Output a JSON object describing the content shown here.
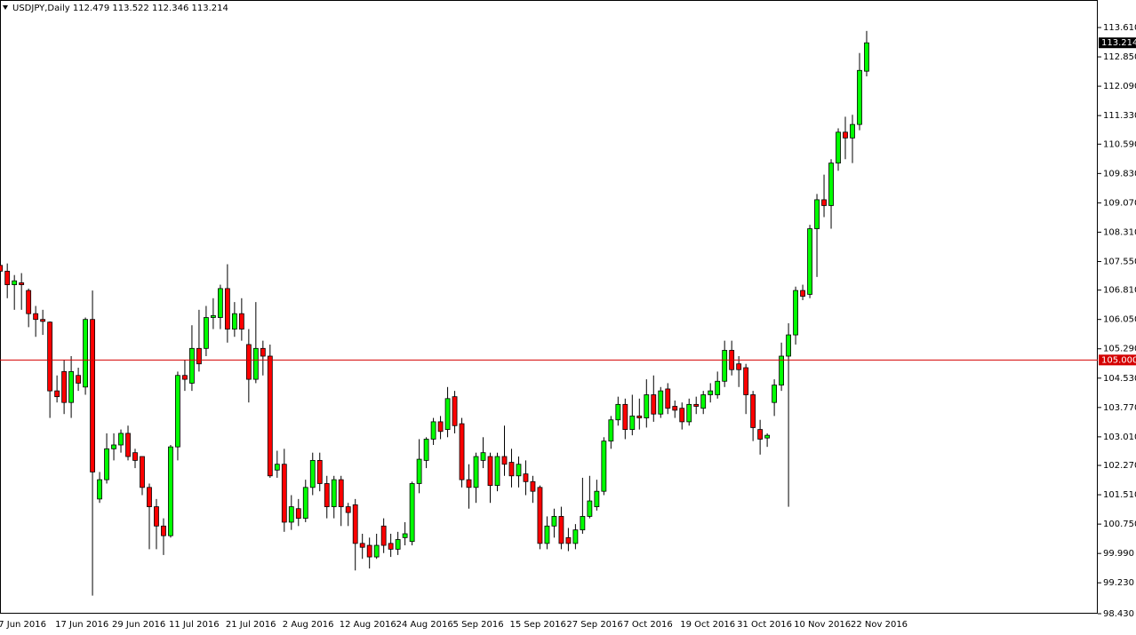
{
  "chart_data": {
    "type": "candlestick",
    "title": "USDJPY,Daily  112.479 113.522 112.346 113.214",
    "categories": [
      "7 Jun 2016",
      null,
      null,
      null,
      null,
      null,
      null,
      null,
      "17 Jun 2016",
      null,
      null,
      null,
      null,
      null,
      null,
      null,
      "29 Jun 2016",
      null,
      null,
      null,
      null,
      null,
      null,
      null,
      "11 Jul 2016",
      null,
      null,
      null,
      null,
      null,
      null,
      null,
      "21 Jul 2016",
      null,
      null,
      null,
      null,
      null,
      null,
      null,
      "2 Aug 2016",
      null,
      null,
      null,
      null,
      null,
      null,
      null,
      "12 Aug 2016",
      null,
      null,
      null,
      null,
      null,
      null,
      null,
      "24 Aug 2016",
      null,
      null,
      null,
      null,
      null,
      null,
      null,
      "5 Sep 2016",
      null,
      null,
      null,
      null,
      null,
      null,
      null,
      "15 Sep 2016",
      null,
      null,
      null,
      null,
      null,
      null,
      null,
      "27 Sep 2016",
      null,
      null,
      null,
      null,
      null,
      null,
      null,
      "7 Oct 2016",
      null,
      null,
      null,
      null,
      null,
      null,
      null,
      "19 Oct 2016",
      null,
      null,
      null,
      null,
      null,
      null,
      null,
      "31 Oct 2016",
      null,
      null,
      null,
      null,
      null,
      null,
      null,
      "10 Nov 2016",
      null,
      null,
      null,
      null,
      null,
      null,
      null,
      "22 Nov 2016",
      null,
      null
    ],
    "open": [
      107.45,
      107.3,
      106.95,
      107.0,
      106.8,
      106.2,
      106.05,
      105.98,
      104.2,
      104.7,
      103.9,
      104.6,
      104.3,
      106.05,
      101.4,
      101.9,
      102.7,
      102.8,
      103.1,
      102.6,
      102.5,
      101.7,
      101.2,
      100.7,
      100.45,
      102.75,
      104.6,
      104.4,
      105.3,
      105.3,
      106.1,
      106.1,
      106.85,
      105.8,
      106.2,
      105.4,
      104.5,
      105.3,
      105.1,
      102.15,
      102.3,
      100.8,
      101.15,
      100.9,
      101.7,
      102.4,
      101.8,
      101.2,
      101.9,
      101.2,
      101.25,
      100.25,
      100.2,
      99.9,
      100.7,
      100.25,
      100.1,
      100.4,
      100.3,
      101.8,
      102.4,
      102.95,
      103.4,
      103.2,
      104.05,
      103.35,
      101.9,
      101.7,
      102.4,
      102.5,
      101.75,
      102.5,
      102.35,
      102.0,
      102.05,
      101.85,
      101.7,
      100.25,
      100.7,
      100.95,
      100.4,
      100.25,
      100.6,
      100.95,
      101.2,
      101.6,
      102.9,
      103.45,
      103.85,
      103.2,
      103.55,
      103.5,
      104.1,
      103.6,
      104.25,
      103.8,
      103.75,
      103.4,
      103.85,
      103.75,
      104.1,
      104.1,
      104.45,
      105.25,
      104.9,
      104.8,
      104.1,
      103.2,
      102.98,
      103.9,
      104.35,
      105.1,
      105.65,
      106.8,
      106.7,
      108.4,
      109.15,
      109.0,
      110.1,
      110.9,
      110.75,
      111.1,
      112.479
    ],
    "high": [
      107.6,
      107.5,
      107.2,
      107.25,
      106.85,
      106.4,
      106.3,
      106.0,
      104.6,
      105.0,
      105.1,
      104.8,
      106.1,
      106.8,
      102.1,
      103.1,
      103.1,
      103.2,
      103.3,
      102.7,
      102.5,
      101.8,
      101.4,
      100.9,
      102.8,
      104.7,
      105.0,
      105.9,
      106.3,
      106.4,
      106.6,
      106.95,
      107.48,
      106.5,
      106.6,
      105.8,
      106.5,
      105.5,
      105.4,
      102.65,
      102.7,
      101.5,
      101.4,
      101.9,
      102.6,
      102.6,
      102.0,
      102.0,
      102.0,
      101.3,
      101.4,
      100.5,
      100.4,
      100.5,
      100.9,
      100.5,
      100.55,
      100.8,
      101.85,
      102.95,
      103.0,
      103.5,
      103.55,
      104.3,
      104.2,
      103.5,
      102.3,
      102.6,
      103.0,
      102.6,
      102.6,
      103.3,
      102.7,
      102.5,
      102.4,
      102.0,
      101.75,
      100.95,
      101.15,
      101.2,
      100.65,
      100.75,
      101.95,
      102.0,
      101.9,
      103.0,
      103.55,
      104.05,
      104.0,
      104.1,
      104.0,
      104.5,
      104.6,
      104.3,
      104.4,
      103.95,
      103.9,
      104.0,
      104.05,
      104.2,
      104.4,
      104.7,
      105.5,
      105.5,
      105.1,
      104.9,
      104.2,
      103.45,
      103.1,
      104.5,
      105.45,
      105.95,
      106.9,
      106.95,
      108.5,
      109.3,
      109.8,
      110.2,
      111.0,
      111.3,
      111.35,
      112.95,
      113.522
    ],
    "low": [
      106.9,
      106.6,
      106.3,
      106.3,
      105.85,
      105.6,
      105.65,
      103.5,
      103.9,
      103.6,
      103.5,
      104.2,
      104.1,
      98.9,
      101.3,
      101.8,
      102.4,
      102.6,
      102.4,
      102.2,
      101.5,
      100.1,
      100.1,
      99.95,
      100.4,
      102.4,
      104.2,
      104.2,
      104.7,
      105.1,
      105.8,
      105.8,
      105.45,
      105.6,
      105.5,
      103.9,
      104.4,
      104.6,
      101.95,
      101.95,
      100.55,
      100.6,
      100.7,
      100.8,
      101.5,
      101.6,
      100.9,
      100.9,
      100.7,
      100.7,
      99.55,
      99.85,
      99.6,
      99.85,
      100.0,
      99.9,
      99.95,
      100.2,
      100.2,
      101.55,
      102.2,
      102.8,
      102.95,
      103.0,
      103.1,
      101.7,
      101.15,
      101.3,
      102.2,
      101.3,
      101.6,
      102.0,
      101.7,
      101.7,
      101.5,
      101.3,
      100.1,
      100.1,
      100.4,
      100.1,
      100.05,
      100.1,
      100.5,
      100.9,
      101.1,
      101.5,
      102.7,
      103.3,
      102.95,
      103.05,
      103.2,
      103.25,
      103.4,
      103.5,
      103.6,
      103.5,
      103.2,
      103.3,
      103.6,
      103.6,
      103.9,
      104.0,
      104.3,
      104.6,
      104.3,
      103.6,
      102.9,
      102.55,
      102.75,
      103.55,
      104.2,
      101.2,
      105.4,
      106.55,
      106.6,
      107.15,
      108.7,
      108.4,
      109.9,
      110.2,
      110.1,
      110.95,
      112.346
    ],
    "close": [
      107.3,
      106.95,
      107.05,
      106.95,
      106.2,
      106.05,
      106.0,
      104.2,
      104.05,
      103.9,
      104.7,
      104.4,
      106.05,
      102.1,
      101.9,
      102.7,
      102.8,
      103.1,
      102.5,
      102.4,
      101.7,
      101.2,
      100.7,
      100.45,
      102.75,
      104.6,
      104.5,
      105.3,
      104.9,
      106.1,
      106.15,
      106.85,
      105.8,
      106.2,
      105.8,
      104.5,
      105.3,
      105.1,
      102.0,
      102.3,
      100.8,
      101.2,
      100.9,
      101.7,
      102.4,
      101.8,
      101.2,
      101.9,
      101.2,
      101.05,
      100.25,
      100.15,
      99.9,
      100.2,
      100.2,
      100.1,
      100.35,
      100.5,
      101.8,
      102.43,
      102.95,
      103.4,
      103.15,
      104.0,
      103.3,
      101.9,
      101.7,
      102.5,
      102.6,
      101.75,
      102.5,
      102.3,
      102.0,
      102.3,
      101.85,
      101.6,
      100.25,
      100.7,
      100.95,
      100.25,
      100.25,
      100.6,
      100.95,
      101.35,
      101.6,
      102.9,
      103.45,
      103.85,
      103.2,
      103.55,
      103.5,
      104.1,
      103.6,
      104.2,
      103.75,
      103.7,
      103.4,
      103.85,
      103.8,
      104.1,
      104.2,
      104.45,
      105.25,
      104.75,
      104.75,
      104.1,
      103.25,
      102.95,
      103.05,
      104.35,
      105.1,
      105.65,
      106.8,
      106.65,
      108.4,
      109.15,
      109.0,
      110.1,
      110.9,
      110.75,
      111.1,
      112.5,
      113.214
    ],
    "up_color": "#00ff00",
    "down_color": "#ff0000",
    "wick_color": "#000000",
    "ylim": [
      98.43,
      114.323
    ],
    "yticks": [
      {
        "value": 113.61,
        "label": "113.610"
      },
      {
        "value": 112.85,
        "label": "112.850"
      },
      {
        "value": 112.09,
        "label": "112.090"
      },
      {
        "value": 111.33,
        "label": "111.330"
      },
      {
        "value": 110.59,
        "label": "110.590"
      },
      {
        "value": 109.83,
        "label": "109.830"
      },
      {
        "value": 109.07,
        "label": "109.070"
      },
      {
        "value": 108.31,
        "label": "108.310"
      },
      {
        "value": 107.55,
        "label": "107.550"
      },
      {
        "value": 106.81,
        "label": "106.810"
      },
      {
        "value": 106.05,
        "label": "106.050"
      },
      {
        "value": 105.29,
        "label": "105.290"
      },
      {
        "value": 104.53,
        "label": "104.530"
      },
      {
        "value": 103.77,
        "label": "103.770"
      },
      {
        "value": 103.01,
        "label": "103.010"
      },
      {
        "value": 102.27,
        "label": "102.270"
      },
      {
        "value": 101.51,
        "label": "101.510"
      },
      {
        "value": 100.75,
        "label": "100.750"
      },
      {
        "value": 99.99,
        "label": "99.990"
      },
      {
        "value": 99.23,
        "label": "99.230"
      },
      {
        "value": 98.43,
        "label": "98.430"
      }
    ],
    "hline": {
      "value": 105.0,
      "label": "105.000",
      "color": "#d40000"
    },
    "grid": false
  }
}
